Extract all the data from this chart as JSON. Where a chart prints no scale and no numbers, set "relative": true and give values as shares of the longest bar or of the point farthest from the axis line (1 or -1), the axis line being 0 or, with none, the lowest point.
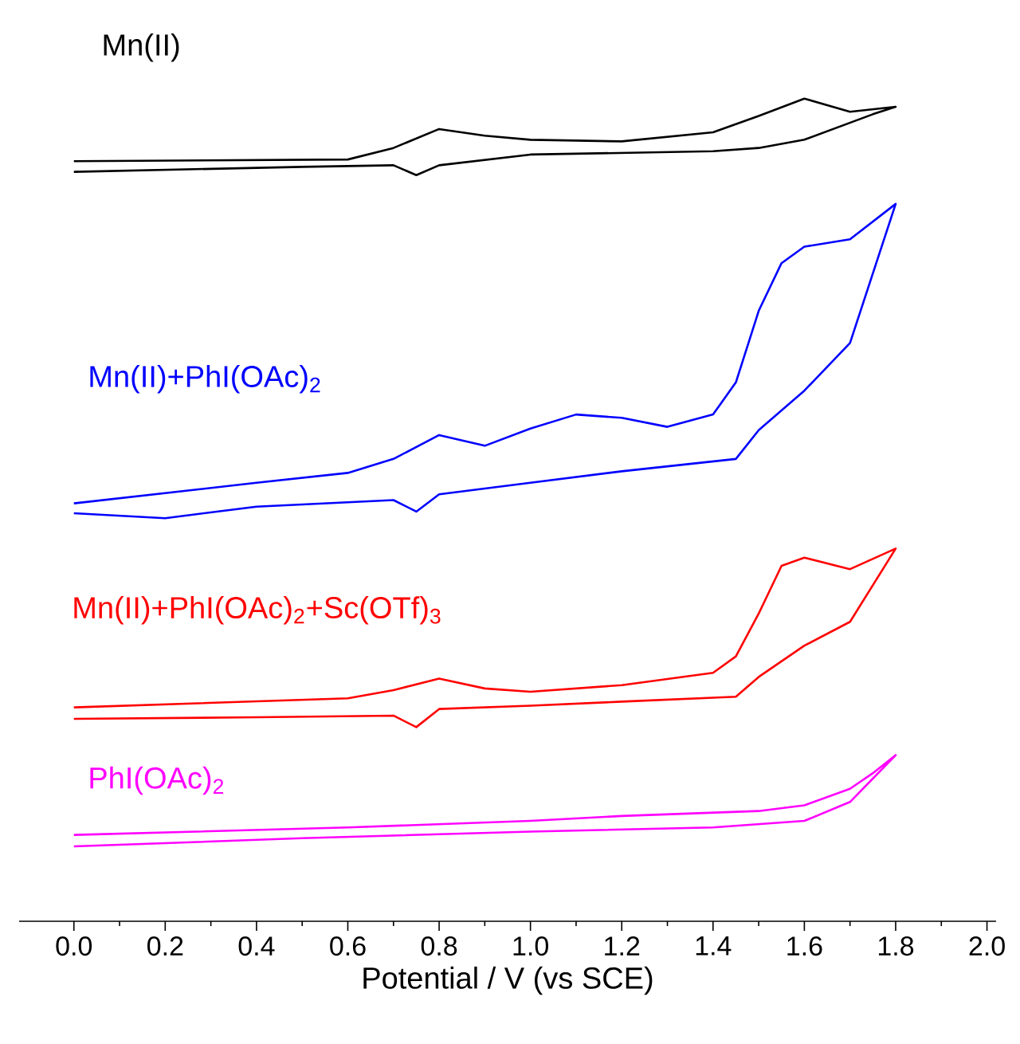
{
  "chart_data": {
    "type": "line",
    "relative": true,
    "xlabel": "Potential / V (vs SCE)",
    "xlim": [
      -0.12,
      2.02
    ],
    "xticks": [
      {
        "value": 0,
        "label": "0.0"
      },
      {
        "value": 0.2,
        "label": "0.2"
      },
      {
        "value": 0.4,
        "label": "0.4"
      },
      {
        "value": 0.6,
        "label": "0.6"
      },
      {
        "value": 0.8,
        "label": "0.8"
      },
      {
        "value": 1,
        "label": "1.0"
      },
      {
        "value": 1.2,
        "label": "1.2"
      },
      {
        "value": 1.4,
        "label": "1.4"
      },
      {
        "value": 1.6,
        "label": "1.6"
      },
      {
        "value": 1.8,
        "label": "1.8"
      },
      {
        "value": 2,
        "label": "2.0"
      }
    ],
    "marker": "none",
    "line_style": "solid",
    "series": [
      {
        "name": "Mn(II)",
        "color": "#000000",
        "x": [
          0,
          0.6,
          0.7,
          0.8,
          0.9,
          1.0,
          1.2,
          1.4,
          1.5,
          1.6,
          1.7,
          1.8,
          1.75,
          1.6,
          1.5,
          1.4,
          1.0,
          0.8,
          0.75,
          0.7,
          0.5,
          0
        ],
        "values": [
          0.924,
          0.926,
          0.94,
          0.963,
          0.955,
          0.95,
          0.948,
          0.959,
          0.979,
          1.0,
          0.984,
          0.99,
          0.981,
          0.95,
          0.94,
          0.936,
          0.932,
          0.919,
          0.907,
          0.919,
          0.917,
          0.911
        ]
      },
      {
        "name": "Mn(II)+PhI(OAc)$_{2}$",
        "color": "#0000ff",
        "x": [
          0,
          0.4,
          0.6,
          0.7,
          0.8,
          0.9,
          1.0,
          1.1,
          1.2,
          1.3,
          1.4,
          1.45,
          1.5,
          1.55,
          1.6,
          1.7,
          1.8,
          1.7,
          1.6,
          1.5,
          1.45,
          1.2,
          1.0,
          0.8,
          0.75,
          0.7,
          0.4,
          0.2,
          0
        ],
        "values": [
          0.508,
          0.533,
          0.545,
          0.562,
          0.591,
          0.578,
          0.599,
          0.616,
          0.612,
          0.601,
          0.616,
          0.655,
          0.742,
          0.8,
          0.82,
          0.829,
          0.872,
          0.703,
          0.645,
          0.597,
          0.562,
          0.547,
          0.533,
          0.519,
          0.498,
          0.512,
          0.504,
          0.49,
          0.496
        ]
      },
      {
        "name": "Mn(II)+PhI(OAc)$_{2}$+Sc(OTf)$_{3}$",
        "color": "#ff0000",
        "x": [
          0,
          0.6,
          0.7,
          0.8,
          0.9,
          1.0,
          1.2,
          1.4,
          1.45,
          1.5,
          1.55,
          1.6,
          1.7,
          1.8,
          1.7,
          1.6,
          1.5,
          1.45,
          1.2,
          1.0,
          0.8,
          0.75,
          0.7,
          0.4,
          0
        ],
        "values": [
          0.26,
          0.271,
          0.281,
          0.295,
          0.283,
          0.279,
          0.287,
          0.302,
          0.322,
          0.374,
          0.432,
          0.442,
          0.428,
          0.453,
          0.364,
          0.335,
          0.297,
          0.273,
          0.267,
          0.262,
          0.258,
          0.236,
          0.25,
          0.248,
          0.246
        ]
      },
      {
        "name": "PhI(OAc)$_{2}$",
        "color": "#ff00ff",
        "x": [
          0,
          0.6,
          1.0,
          1.2,
          1.5,
          1.6,
          1.7,
          1.75,
          1.8,
          1.7,
          1.6,
          1.4,
          1.0,
          0.5,
          0
        ],
        "values": [
          0.105,
          0.114,
          0.122,
          0.128,
          0.134,
          0.141,
          0.161,
          0.18,
          0.202,
          0.145,
          0.122,
          0.114,
          0.109,
          0.101,
          0.091
        ]
      }
    ]
  }
}
